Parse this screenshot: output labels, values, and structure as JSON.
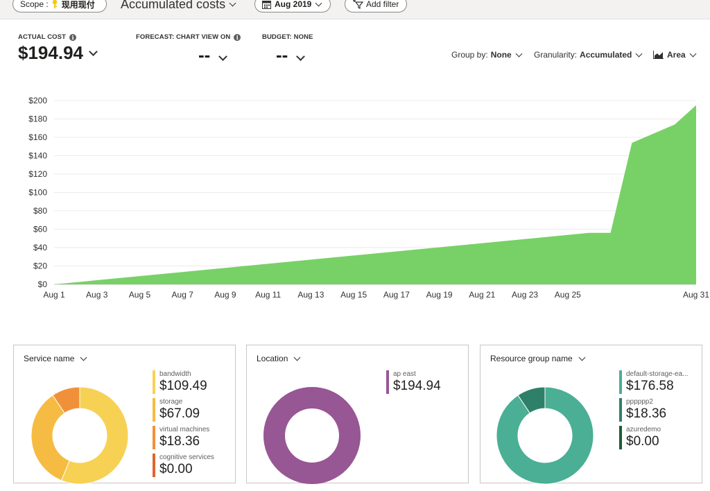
{
  "toolbar": {
    "scope_label": "Scope :",
    "scope_value": "现用现付",
    "view_title": "Accumulated costs",
    "date_range": "Aug 2019",
    "add_filter": "Add filter"
  },
  "kpis": {
    "actual_cost_label": "ACTUAL COST",
    "actual_cost_value": "$194.94",
    "forecast_label": "FORECAST: CHART VIEW ON",
    "forecast_value": "--",
    "budget_label": "BUDGET: NONE",
    "budget_value": "--"
  },
  "controls": {
    "group_by_label": "Group by:",
    "group_by_value": "None",
    "granularity_label": "Granularity:",
    "granularity_value": "Accumulated",
    "chart_type": "Area"
  },
  "chart_data": {
    "type": "area",
    "title": "",
    "xlabel": "",
    "ylabel": "",
    "ylim": [
      0,
      200
    ],
    "yticks": [
      "$0",
      "$20",
      "$40",
      "$60",
      "$80",
      "$100",
      "$120",
      "$140",
      "$160",
      "$180",
      "$200"
    ],
    "xticks": [
      "Aug 1",
      "Aug 3",
      "Aug 5",
      "Aug 7",
      "Aug 9",
      "Aug 11",
      "Aug 13",
      "Aug 15",
      "Aug 17",
      "Aug 19",
      "Aug 21",
      "Aug 23",
      "Aug 25",
      "Aug 31"
    ],
    "x": [
      1,
      26,
      27,
      28,
      29,
      30,
      31
    ],
    "values": [
      0,
      56,
      56,
      154,
      164,
      174,
      194.94
    ],
    "color": "#78d166",
    "grid": true
  },
  "cards": [
    {
      "title": "Service name",
      "items": [
        {
          "name": "bandwidth",
          "value": "$109.49",
          "amount": 109.49,
          "color": "#f7d154"
        },
        {
          "name": "storage",
          "value": "$67.09",
          "amount": 67.09,
          "color": "#f6bb42"
        },
        {
          "name": "virtual machines",
          "value": "$18.36",
          "amount": 18.36,
          "color": "#f0913a"
        },
        {
          "name": "cognitive services",
          "value": "$0.00",
          "amount": 0,
          "color": "#e0652f"
        }
      ]
    },
    {
      "title": "Location",
      "items": [
        {
          "name": "ap east",
          "value": "$194.94",
          "amount": 194.94,
          "color": "#975694"
        }
      ]
    },
    {
      "title": "Resource group name",
      "items": [
        {
          "name": "default-storage-ea...",
          "value": "$176.58",
          "amount": 176.58,
          "color": "#4aaf94"
        },
        {
          "name": "pppppp2",
          "value": "$18.36",
          "amount": 18.36,
          "color": "#2f8068"
        },
        {
          "name": "azuredemo",
          "value": "$0.00",
          "amount": 0,
          "color": "#1b5e36"
        }
      ]
    }
  ]
}
